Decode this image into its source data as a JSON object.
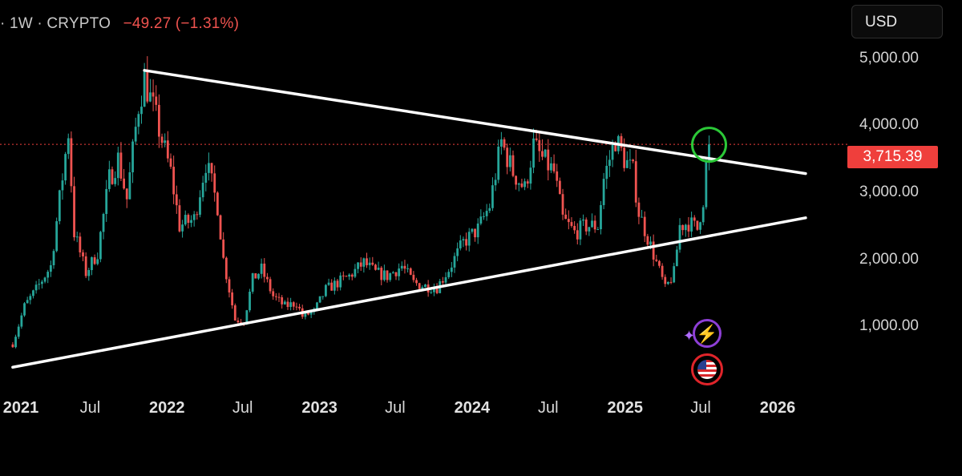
{
  "header": {
    "symbol_text": "· 1W · CRYPTO",
    "change_text": "−49.27 (−1.31%)"
  },
  "currency_button": "USD",
  "last_price_label": "3,715.39",
  "colors": {
    "up": "#26a69a",
    "down": "#ef5350",
    "trendline": "#ffffff",
    "highlight_circle": "#2bc837",
    "price_line": "#ef3f3c"
  },
  "icons": [
    "sparkle-lightning-icon",
    "us-flag-icon"
  ],
  "chart_data": {
    "type": "candlestick",
    "interval": "1W",
    "y_axis": {
      "scale": "linear",
      "ticks": [
        "5,000.00",
        "4,000.00",
        "3,000.00",
        "2,000.00",
        "1,000.00"
      ],
      "tick_values": [
        5000,
        4000,
        3000,
        2000,
        1000
      ],
      "ylim": [
        190,
        5870
      ]
    },
    "x_axis": {
      "ticks": [
        {
          "label": "2021",
          "date": "2021-01-01",
          "year": true
        },
        {
          "label": "Jul",
          "date": "2021-07-01",
          "year": false
        },
        {
          "label": "2022",
          "date": "2022-01-01",
          "year": true
        },
        {
          "label": "Jul",
          "date": "2022-07-01",
          "year": false
        },
        {
          "label": "2023",
          "date": "2023-01-01",
          "year": true
        },
        {
          "label": "Jul",
          "date": "2023-07-01",
          "year": false
        },
        {
          "label": "2024",
          "date": "2024-01-01",
          "year": true
        },
        {
          "label": "Jul",
          "date": "2024-07-01",
          "year": false
        },
        {
          "label": "2025",
          "date": "2025-01-01",
          "year": true
        },
        {
          "label": "Jul",
          "date": "2025-07-01",
          "year": false
        },
        {
          "label": "2026",
          "date": "2026-01-01",
          "year": true
        }
      ]
    },
    "last_price": 3715.39,
    "price_path": [
      [
        "2020-12-28",
        730
      ],
      [
        "2021-01-25",
        1300
      ],
      [
        "2021-02-22",
        1550
      ],
      [
        "2021-03-29",
        1900
      ],
      [
        "2021-05-10",
        3900
      ],
      [
        "2021-05-24",
        2400
      ],
      [
        "2021-06-21",
        1800
      ],
      [
        "2021-07-19",
        2100
      ],
      [
        "2021-08-16",
        3200
      ],
      [
        "2021-09-06",
        3500
      ],
      [
        "2021-09-27",
        2900
      ],
      [
        "2021-10-25",
        4300
      ],
      [
        "2021-11-08",
        4700
      ],
      [
        "2021-12-06",
        4100
      ],
      [
        "2022-01-10",
        3300
      ],
      [
        "2022-01-31",
        2500
      ],
      [
        "2022-03-07",
        2600
      ],
      [
        "2022-04-04",
        3450
      ],
      [
        "2022-05-02",
        2800
      ],
      [
        "2022-05-16",
        2000
      ],
      [
        "2022-06-13",
        1100
      ],
      [
        "2022-07-04",
        1080
      ],
      [
        "2022-07-25",
        1700
      ],
      [
        "2022-08-15",
        1850
      ],
      [
        "2022-09-12",
        1450
      ],
      [
        "2022-10-10",
        1300
      ],
      [
        "2022-11-07",
        1350
      ],
      [
        "2022-11-21",
        1150
      ],
      [
        "2022-12-19",
        1220
      ],
      [
        "2023-01-16",
        1550
      ],
      [
        "2023-02-13",
        1650
      ],
      [
        "2023-03-13",
        1750
      ],
      [
        "2023-04-17",
        1950
      ],
      [
        "2023-05-15",
        1800
      ],
      [
        "2023-06-12",
        1750
      ],
      [
        "2023-07-17",
        1900
      ],
      [
        "2023-08-14",
        1650
      ],
      [
        "2023-09-11",
        1600
      ],
      [
        "2023-10-09",
        1580
      ],
      [
        "2023-11-06",
        1850
      ],
      [
        "2023-12-11",
        2250
      ],
      [
        "2024-01-15",
        2450
      ],
      [
        "2024-02-12",
        2800
      ],
      [
        "2024-03-11",
        3750
      ],
      [
        "2024-04-08",
        3300
      ],
      [
        "2024-05-06",
        3050
      ],
      [
        "2024-05-27",
        3700
      ],
      [
        "2024-06-17",
        3500
      ],
      [
        "2024-07-15",
        3300
      ],
      [
        "2024-08-05",
        2600
      ],
      [
        "2024-09-02",
        2400
      ],
      [
        "2024-09-30",
        2500
      ],
      [
        "2024-10-28",
        2500
      ],
      [
        "2024-11-11",
        3200
      ],
      [
        "2024-12-09",
        3800
      ],
      [
        "2024-12-30",
        3500
      ],
      [
        "2025-01-20",
        3300
      ],
      [
        "2025-02-03",
        2700
      ],
      [
        "2025-03-03",
        2200
      ],
      [
        "2025-03-31",
        1700
      ],
      [
        "2025-04-07",
        1550
      ],
      [
        "2025-04-28",
        1800
      ],
      [
        "2025-05-12",
        2500
      ],
      [
        "2025-06-02",
        2550
      ],
      [
        "2025-06-23",
        2450
      ],
      [
        "2025-07-07",
        2900
      ],
      [
        "2025-07-14",
        3400
      ],
      [
        "2025-07-21",
        3715.39
      ]
    ],
    "annotations": [
      {
        "type": "trendline",
        "name": "upper-trendline",
        "from": [
          "2021-11-08",
          4820
        ],
        "to": [
          "2026-03-09",
          3280
        ]
      },
      {
        "type": "trendline",
        "name": "lower-trendline",
        "from": [
          "2020-12-28",
          390
        ],
        "to": [
          "2026-03-09",
          2620
        ]
      },
      {
        "type": "circle",
        "name": "breakout-highlight",
        "at": [
          "2025-07-21",
          3710
        ]
      },
      {
        "type": "horizontal-line",
        "name": "last-price-line",
        "value": 3715.39
      }
    ]
  }
}
